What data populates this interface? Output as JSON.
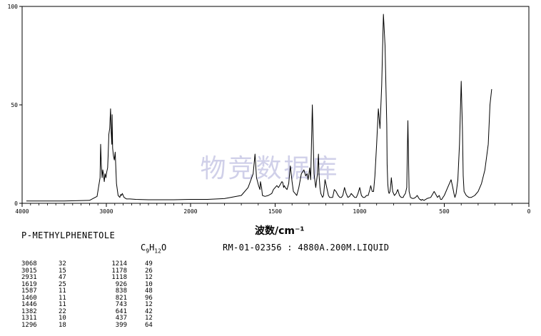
{
  "chart_data": {
    "type": "line",
    "title": "",
    "xlabel": "波数/cm⁻¹",
    "ylabel": "",
    "xlim": [
      4000,
      0
    ],
    "ylim": [
      0,
      100
    ],
    "x_ticks": [
      "4000",
      "3000",
      "2000",
      "1500",
      "1000",
      "500",
      "0"
    ],
    "y_ticks": [
      "0",
      "50",
      "100"
    ],
    "watermark": "物竞数据库",
    "series": [
      {
        "x": [
          3950,
          3500,
          3200,
          3110,
          3075,
          3068,
          3060,
          3050,
          3042,
          3035,
          3025,
          3015,
          3005,
          2995,
          2985,
          2978,
          2970,
          2960,
          2950,
          2942,
          2935,
          2931,
          2925,
          2915,
          2905,
          2895,
          2880,
          2860,
          2840,
          2830,
          2820,
          2810,
          2790,
          2760,
          2720,
          2650,
          2500,
          2200,
          2000,
          1900,
          1800,
          1700,
          1660,
          1630,
          1619,
          1610,
          1598,
          1590,
          1587,
          1580,
          1575,
          1560,
          1540,
          1520,
          1510,
          1500,
          1490,
          1480,
          1470,
          1460,
          1455,
          1450,
          1446,
          1440,
          1430,
          1420,
          1410,
          1400,
          1392,
          1382,
          1372,
          1360,
          1345,
          1330,
          1320,
          1311,
          1305,
          1300,
          1296,
          1290,
          1280,
          1270,
          1260,
          1250,
          1244,
          1240,
          1235,
          1230,
          1220,
          1214,
          1205,
          1195,
          1185,
          1178,
          1170,
          1160,
          1150,
          1140,
          1128,
          1118,
          1108,
          1100,
          1090,
          1080,
          1070,
          1060,
          1050,
          1040,
          1030,
          1020,
          1010,
          1000,
          990,
          980,
          970,
          960,
          950,
          940,
          935,
          926,
          918,
          910,
          900,
          890,
          880,
          870,
          860,
          850,
          840,
          838,
          834,
          830,
          826,
          821,
          817,
          813,
          805,
          795,
          785,
          775,
          765,
          755,
          748,
          743,
          738,
          730,
          722,
          715,
          708,
          700,
          690,
          680,
          670,
          660,
          650,
          645,
          641,
          637,
          630,
          620,
          600,
          580,
          560,
          540,
          530,
          522,
          515,
          508,
          500,
          480,
          460,
          450,
          443,
          437,
          430,
          420,
          410,
          400,
          393,
          388,
          383,
          370,
          355,
          340,
          320,
          300,
          280,
          260,
          240,
          230,
          220
        ],
        "values": [
          1.2,
          1.2,
          1.5,
          3.5,
          13,
          30,
          20,
          13,
          17,
          15,
          11,
          15,
          13,
          16,
          18,
          25,
          35,
          38,
          48,
          36,
          30,
          45,
          28,
          24,
          22,
          26,
          10,
          4,
          3,
          4.5,
          4,
          5,
          3,
          2.2,
          2.2,
          2,
          1.8,
          1.8,
          2,
          2,
          2.4,
          4,
          8,
          15,
          25,
          13,
          9,
          7,
          11,
          8,
          4,
          3.5,
          4,
          5,
          7,
          8,
          9,
          8,
          9.5,
          11,
          10.5,
          8,
          9,
          8,
          7,
          10,
          19,
          11,
          6,
          5,
          4,
          8,
          15,
          17,
          14,
          15,
          12,
          15,
          18,
          12,
          50,
          15,
          8,
          15,
          25,
          14,
          8,
          5,
          3,
          4,
          12,
          8,
          4,
          3,
          3,
          3,
          7,
          6,
          4,
          3,
          3,
          4,
          8,
          5,
          3,
          3.5,
          5,
          4,
          3,
          3,
          5,
          8,
          4,
          3,
          3,
          4,
          4,
          7,
          9,
          6,
          6,
          14,
          30,
          48,
          38,
          60,
          96,
          80,
          40,
          20,
          10,
          6,
          5,
          6,
          9,
          13,
          6,
          4,
          5,
          7,
          4,
          3,
          3,
          3,
          4,
          5,
          8,
          42,
          6,
          3,
          2.5,
          2.5,
          3,
          4,
          2.5,
          2,
          2,
          1.5,
          2,
          1.5,
          2.5,
          3,
          6,
          3,
          4,
          2,
          2,
          3,
          4,
          8,
          12,
          8,
          5,
          3,
          5,
          12,
          30,
          62,
          38,
          14,
          6,
          4,
          3,
          3,
          4,
          6,
          10,
          17,
          30,
          50,
          58
        ]
      }
    ]
  },
  "spectrum_info": {
    "compound_name": "P-METHYLPHENETOLE",
    "formula_parts": [
      "C",
      "9",
      "H",
      "12",
      "O"
    ],
    "sample_info": "RM-01-02356 : 4880A.200M.LIQUID"
  },
  "peak_table": [
    [
      "3068",
      "32",
      "1214",
      "49"
    ],
    [
      "3015",
      "15",
      "1178",
      "26"
    ],
    [
      "2931",
      "47",
      "1118",
      "12"
    ],
    [
      "1619",
      "25",
      "926",
      "10"
    ],
    [
      "1587",
      "11",
      "838",
      "48"
    ],
    [
      "1460",
      "11",
      "821",
      "96"
    ],
    [
      "1446",
      "11",
      "743",
      "12"
    ],
    [
      "1382",
      "22",
      "641",
      "42"
    ],
    [
      "1311",
      "10",
      "437",
      "12"
    ],
    [
      "1296",
      "18",
      "399",
      "64"
    ]
  ]
}
